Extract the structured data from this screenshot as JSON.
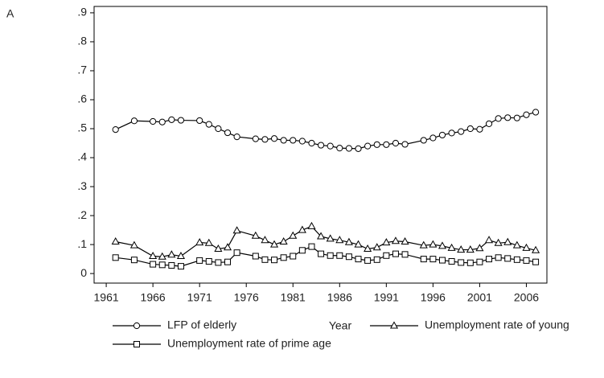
{
  "chart_data": {
    "type": "line",
    "panel_label": "A",
    "xlabel": "Year",
    "x": [
      1962,
      1964,
      1966,
      1967,
      1968,
      1969,
      1971,
      1972,
      1973,
      1974,
      1975,
      1977,
      1978,
      1979,
      1980,
      1981,
      1982,
      1983,
      1984,
      1985,
      1986,
      1987,
      1988,
      1989,
      1990,
      1991,
      1992,
      1993,
      1995,
      1996,
      1997,
      1998,
      1999,
      2000,
      2001,
      2002,
      2003,
      2004,
      2005,
      2006,
      2007
    ],
    "series": [
      {
        "name": "LFP of elderly",
        "color": "#000000",
        "marker": "circle",
        "values": [
          0.497,
          0.527,
          0.525,
          0.523,
          0.531,
          0.529,
          0.528,
          0.515,
          0.5,
          0.486,
          0.472,
          0.465,
          0.463,
          0.466,
          0.46,
          0.46,
          0.457,
          0.45,
          0.443,
          0.44,
          0.433,
          0.432,
          0.431,
          0.44,
          0.445,
          0.445,
          0.45,
          0.446,
          0.46,
          0.468,
          0.478,
          0.485,
          0.49,
          0.5,
          0.498,
          0.517,
          0.535,
          0.538,
          0.537,
          0.548,
          0.557
        ]
      },
      {
        "name": "Unemployment rate of young",
        "color": "#000000",
        "marker": "triangle",
        "values": [
          0.11,
          0.097,
          0.06,
          0.058,
          0.065,
          0.06,
          0.107,
          0.105,
          0.085,
          0.09,
          0.148,
          0.13,
          0.115,
          0.1,
          0.11,
          0.13,
          0.15,
          0.163,
          0.128,
          0.12,
          0.115,
          0.108,
          0.1,
          0.085,
          0.09,
          0.107,
          0.112,
          0.11,
          0.097,
          0.1,
          0.095,
          0.088,
          0.082,
          0.082,
          0.087,
          0.115,
          0.105,
          0.108,
          0.097,
          0.088,
          0.08
        ]
      },
      {
        "name": "Unemployment rate of prime age",
        "color": "#000000",
        "marker": "square",
        "values": [
          0.055,
          0.047,
          0.032,
          0.03,
          0.028,
          0.025,
          0.045,
          0.042,
          0.038,
          0.04,
          0.072,
          0.06,
          0.048,
          0.047,
          0.055,
          0.06,
          0.08,
          0.093,
          0.068,
          0.062,
          0.062,
          0.058,
          0.05,
          0.045,
          0.048,
          0.062,
          0.068,
          0.066,
          0.05,
          0.05,
          0.046,
          0.042,
          0.038,
          0.037,
          0.04,
          0.05,
          0.055,
          0.052,
          0.048,
          0.045,
          0.04
        ]
      }
    ],
    "xlim": [
      1959.7,
      2008.2
    ],
    "xticks": [
      1961,
      1966,
      1971,
      1976,
      1981,
      1986,
      1991,
      1996,
      2001,
      2006
    ],
    "ylim": [
      -0.033,
      0.922
    ],
    "yticks": [
      0,
      {
        "value": 0.1,
        "label": ".1"
      },
      {
        "value": 0.2,
        "label": ".2"
      },
      {
        "value": 0.3,
        "label": ".3"
      },
      {
        "value": 0.4,
        "label": ".4"
      },
      {
        "value": 0.5,
        "label": ".5"
      },
      {
        "value": 0.6,
        "label": ".6"
      },
      {
        "value": 0.7,
        "label": ".7"
      },
      {
        "value": 0.8,
        "label": ".8"
      },
      {
        "value": 0.9,
        "label": ".9"
      }
    ],
    "grid": false
  }
}
